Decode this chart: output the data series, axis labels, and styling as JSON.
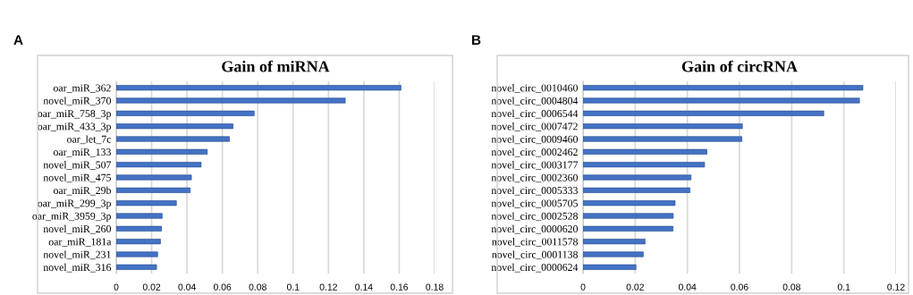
{
  "chart_data": [
    {
      "type": "bar",
      "orientation": "horizontal",
      "title": "Gain of miRNA",
      "annotations": [
        "A"
      ],
      "categories": [
        "oar_miR_362",
        "novel_miR_370",
        "oar_miR_758_3p",
        "oar_miR_433_3p",
        "oar_let_7c",
        "oar_miR_133",
        "novel_miR_507",
        "novel_miR_475",
        "oar_miR_29b",
        "oar_miR_299_3p",
        "oar_miR_3959_3p",
        "novel_miR_260",
        "oar_miR_181a",
        "novel_miR_231",
        "novel_miR_316"
      ],
      "values": [
        0.161,
        0.1295,
        0.078,
        0.066,
        0.064,
        0.0515,
        0.048,
        0.0425,
        0.0418,
        0.034,
        0.026,
        0.0256,
        0.025,
        0.0234,
        0.0228
      ],
      "color": "#4472c4",
      "xlim": [
        0,
        0.18
      ],
      "xticks": [
        0,
        0.02,
        0.04,
        0.06,
        0.08,
        0.1,
        0.12,
        0.14,
        0.16,
        0.18
      ],
      "grid": "x"
    },
    {
      "type": "bar",
      "orientation": "horizontal",
      "title": "Gain of circRNA",
      "annotations": [
        "B"
      ],
      "categories": [
        "novel_circ_0010460",
        "novel_circ_0004804",
        "novel_circ_0006544",
        "novel_circ_0007472",
        "novel_circ_0009460",
        "novel_circ_0002462",
        "novel_circ_0003177",
        "novel_circ_0002360",
        "novel_circ_0005333",
        "novel_circ_0005705",
        "novel_circ_0002528",
        "novel_circ_0000620",
        "novel_circ_0011578",
        "novel_circ_0001138",
        "novel_circ_0000624"
      ],
      "values": [
        0.1073,
        0.106,
        0.0923,
        0.0611,
        0.0609,
        0.0475,
        0.0466,
        0.0414,
        0.041,
        0.0353,
        0.0346,
        0.0345,
        0.0238,
        0.0231,
        0.0203
      ],
      "color": "#4472c4",
      "xlim": [
        0,
        0.12
      ],
      "xticks": [
        0,
        0.02,
        0.04,
        0.06,
        0.08,
        0.1,
        0.12
      ],
      "grid": "x"
    }
  ]
}
